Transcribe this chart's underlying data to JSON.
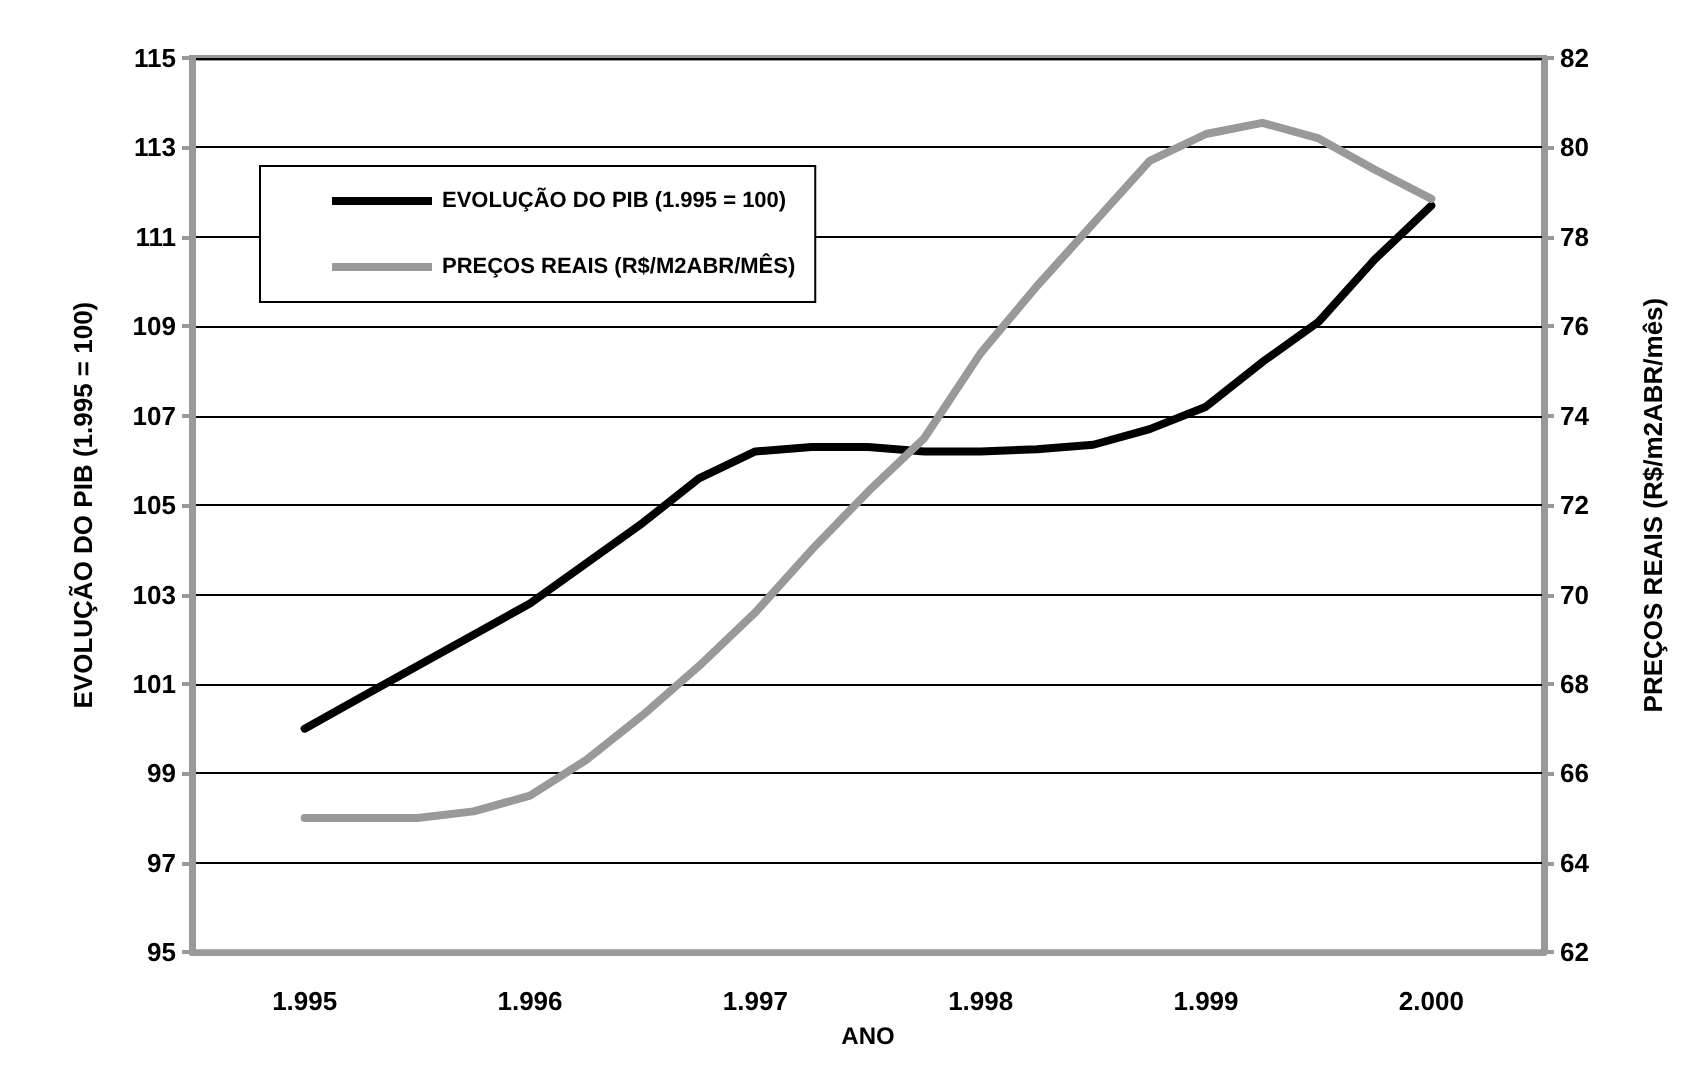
{
  "chart_data": {
    "type": "line",
    "xlabel": "ANO",
    "ylabel": "EVOLUÇÃO DO PIB (1.995 = 100)",
    "y2label": "PREÇOS REAIS (R$/m2ABR/mês)",
    "x": [
      1995,
      1995.25,
      1995.5,
      1995.75,
      1996,
      1996.25,
      1996.5,
      1996.75,
      1997,
      1997.25,
      1997.5,
      1997.75,
      1998,
      1998.25,
      1998.5,
      1998.75,
      1999,
      1999.25,
      1999.5,
      1999.75,
      2000
    ],
    "series": [
      {
        "name": "EVOLUÇÃO DO PIB (1.995 = 100)",
        "color": "#000000",
        "values": [
          100.0,
          100.7,
          101.4,
          102.1,
          102.8,
          103.7,
          104.6,
          105.6,
          106.2,
          106.3,
          106.3,
          106.2,
          106.2,
          106.25,
          106.35,
          106.7,
          107.2,
          108.2,
          109.1,
          110.5,
          111.7
        ]
      },
      {
        "name": "PREÇOS REAIS (R$/M2ABR/MÊS)",
        "color": "#999999",
        "axis": "y2",
        "values": [
          65.0,
          65.0,
          65.0,
          65.15,
          65.5,
          66.3,
          67.3,
          68.4,
          69.6,
          71.0,
          72.3,
          73.5,
          75.4,
          76.9,
          78.3,
          79.7,
          80.3,
          80.55,
          80.2,
          79.5,
          78.85
        ]
      }
    ],
    "xlim": [
      1994.5,
      2000.5
    ],
    "xticks": [
      {
        "value": 1995,
        "label": "1.995"
      },
      {
        "value": 1996,
        "label": "1.996"
      },
      {
        "value": 1997,
        "label": "1.997"
      },
      {
        "value": 1998,
        "label": "1.998"
      },
      {
        "value": 1999,
        "label": "1.999"
      },
      {
        "value": 2000,
        "label": "2.000"
      }
    ],
    "ylim": [
      95,
      115
    ],
    "yticks": [
      95,
      97,
      99,
      101,
      103,
      105,
      107,
      109,
      111,
      113,
      115
    ],
    "y2lim": [
      62,
      82
    ],
    "y2ticks": [
      62,
      64,
      66,
      68,
      70,
      72,
      74,
      76,
      78,
      80,
      82
    ],
    "grid": "y",
    "legend": "top left",
    "marker": "none",
    "line_style": "solid"
  }
}
